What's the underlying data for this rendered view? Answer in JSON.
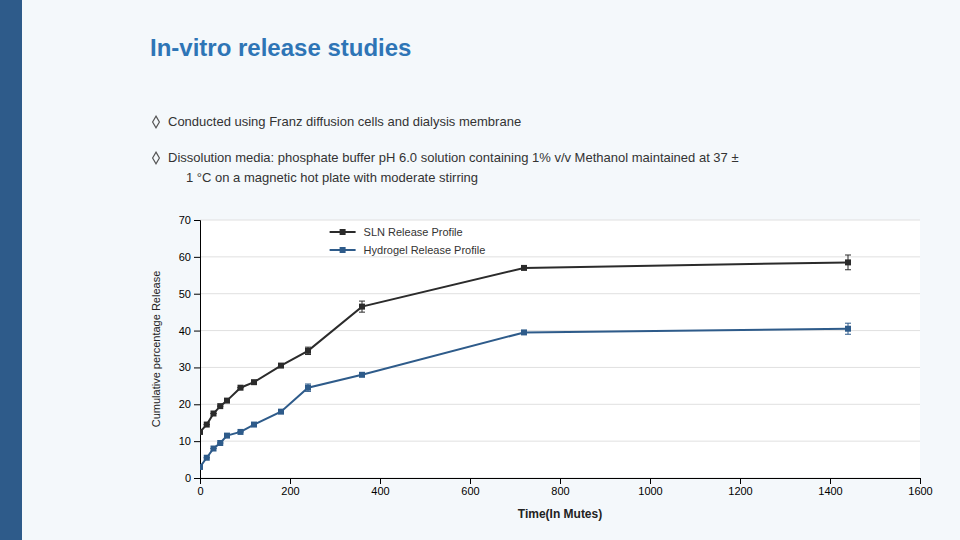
{
  "chart_data": {
    "type": "line",
    "title": "In-vitro release studies",
    "annotations": [
      "Conducted using Franz diffusion cells and dialysis membrane",
      "Dissolution media: phosphate buffer pH 6.0 solution containing 1% v/v Methanol maintained at 37 ±",
      "1 °C on a magnetic hot plate with moderate stirring"
    ],
    "xlabel": "Time(In Mutes)",
    "ylabel": "Cumulative percentage Release",
    "x": [
      0,
      15,
      30,
      45,
      60,
      90,
      120,
      180,
      240,
      360,
      720,
      1440
    ],
    "series": [
      {
        "name": "SLN Release Profile",
        "color": "#2b2b2b",
        "marker": "square",
        "values": [
          12.5,
          14.5,
          17.5,
          19.5,
          21.0,
          24.5,
          26.0,
          30.5,
          34.5,
          46.5,
          57.0,
          58.5
        ],
        "yerr": [
          0.0,
          0.0,
          0.0,
          0.0,
          0.0,
          0.0,
          0.0,
          0.5,
          1.0,
          1.5,
          0.0,
          2.0
        ]
      },
      {
        "name": "Hydrogel Release Profile",
        "color": "#2E5B8A",
        "marker": "square",
        "values": [
          3.0,
          5.5,
          8.0,
          9.5,
          11.5,
          12.5,
          14.5,
          18.0,
          24.5,
          28.0,
          39.5,
          40.5
        ],
        "yerr": [
          0.0,
          0.0,
          0.0,
          0.0,
          0.0,
          0.0,
          0.0,
          0.5,
          1.0,
          0.0,
          0.0,
          1.5
        ]
      }
    ],
    "xlim": [
      0,
      1600
    ],
    "ylim": [
      0,
      70
    ],
    "xticks": [
      0,
      200,
      400,
      600,
      800,
      1000,
      1200,
      1400,
      1600
    ],
    "yticks": [
      0,
      10,
      20,
      30,
      40,
      50,
      60,
      70
    ],
    "grid": true,
    "legend": "upper left"
  }
}
